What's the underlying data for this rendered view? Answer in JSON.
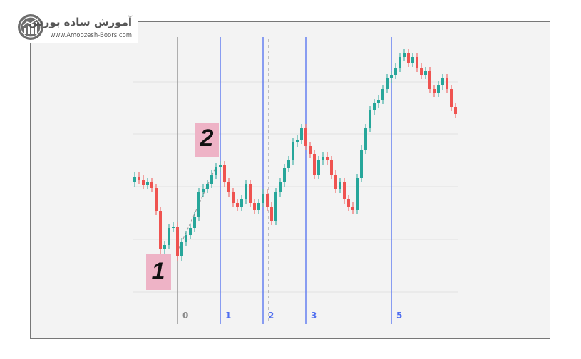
{
  "branding": {
    "title": "آموزش ساده بورس",
    "url": "www.Amoozesh-Boors.com"
  },
  "chart_data": {
    "type": "candlestick",
    "up_color": "#26a69a",
    "down_color": "#ef5350",
    "ylim": [
      0,
      100
    ],
    "ygrid": [
      7.5,
      26,
      44.5,
      63,
      81.25
    ],
    "grid": true,
    "open": [
      46,
      48,
      47,
      45,
      46,
      44,
      36,
      22.5,
      24,
      30,
      30.5,
      20,
      25,
      27.5,
      30,
      34,
      42.5,
      43.75,
      45.5,
      48.75,
      51.25,
      52,
      46,
      42.5,
      38.75,
      37.5,
      40,
      45.5,
      38.75,
      36.25,
      38.75,
      42,
      37.5,
      32.5,
      42.5,
      46,
      51,
      53.75,
      60,
      61,
      65,
      58.75,
      56,
      48.75,
      53.75,
      55,
      53.75,
      48.75,
      43.75,
      46,
      40,
      37.5,
      36.25,
      47.5,
      57.5,
      65,
      71.25,
      73.75,
      75,
      78.75,
      82.5,
      83.75,
      86.25,
      90,
      91.25,
      88,
      90,
      86.25,
      83.75,
      85,
      78.75,
      77.5,
      80,
      82.5,
      78.75,
      72.5
    ],
    "high": [
      49.5,
      49.5,
      48.5,
      47.5,
      47.5,
      45.5,
      37.5,
      25.5,
      31.5,
      32,
      32,
      26.5,
      29,
      31.5,
      35.5,
      44,
      45.25,
      47,
      50.25,
      52.75,
      53.5,
      53.5,
      47.5,
      44,
      40.25,
      41.5,
      47,
      47,
      40.25,
      40.25,
      43.5,
      43.5,
      39,
      44,
      47.5,
      52.5,
      55.25,
      61.5,
      62.5,
      66.5,
      66.5,
      60.25,
      57.5,
      55.25,
      56.5,
      56.5,
      55.25,
      50.25,
      47.5,
      47.5,
      41.5,
      39,
      49,
      59,
      66.5,
      72.75,
      75.25,
      76.5,
      80.25,
      84,
      85.25,
      87.75,
      91.5,
      92.75,
      92.75,
      91.5,
      91.5,
      87.75,
      86.5,
      86.5,
      80.25,
      81.5,
      84,
      84,
      80.25,
      74
    ],
    "low": [
      44.5,
      45.5,
      43.5,
      43.5,
      42.5,
      34.5,
      21,
      21,
      22.5,
      28.5,
      18.5,
      18.5,
      23.5,
      26,
      28.5,
      32.5,
      41,
      42.25,
      44,
      47.25,
      49.75,
      44.5,
      41,
      37.25,
      36,
      36,
      38.5,
      37.25,
      34.75,
      34.75,
      37.25,
      36,
      31,
      31,
      41,
      44.5,
      49.5,
      52.25,
      58.5,
      59.5,
      57.25,
      54.5,
      47.25,
      47.25,
      52.25,
      52.25,
      47.25,
      42.25,
      42.25,
      38.5,
      36,
      34.75,
      34.75,
      46,
      56,
      63.5,
      69.75,
      72.25,
      73.5,
      77.25,
      81,
      82.25,
      84.75,
      88.5,
      86.5,
      86.5,
      84.75,
      82.25,
      82.25,
      77.25,
      76,
      76,
      78.5,
      77.25,
      71,
      68.5
    ],
    "close": [
      48,
      47,
      45,
      46,
      44,
      36,
      22.5,
      24,
      30,
      30.5,
      20,
      25,
      27.5,
      30,
      34,
      42.5,
      43.75,
      45.5,
      48.75,
      51.25,
      52,
      46,
      42.5,
      38.75,
      37.5,
      40,
      45.5,
      38.75,
      36.25,
      38.75,
      42,
      37.5,
      32.5,
      42.5,
      46,
      51,
      53.75,
      60,
      61,
      65,
      58.75,
      56,
      48.75,
      53.75,
      55,
      53.75,
      48.75,
      43.75,
      46,
      40,
      37.5,
      36.25,
      47.5,
      57.5,
      65,
      71.25,
      73.75,
      75,
      78.75,
      82.5,
      83.75,
      86.25,
      90,
      91.25,
      88,
      90,
      86.25,
      83.75,
      85,
      78.75,
      77.5,
      80,
      82.5,
      78.75,
      72.5,
      70
    ],
    "fib_zones": [
      {
        "label": "0",
        "index": 10,
        "color": "#8a8a8a"
      },
      {
        "label": "1",
        "index": 20,
        "color": "#4f6ef0"
      },
      {
        "label": "2",
        "index": 30,
        "color": "#4f6ef0"
      },
      {
        "label": "3",
        "index": 40,
        "color": "#4f6ef0"
      },
      {
        "label": "5",
        "index": 60,
        "color": "#4f6ef0"
      }
    ],
    "annotations": [
      "1",
      "2"
    ]
  }
}
